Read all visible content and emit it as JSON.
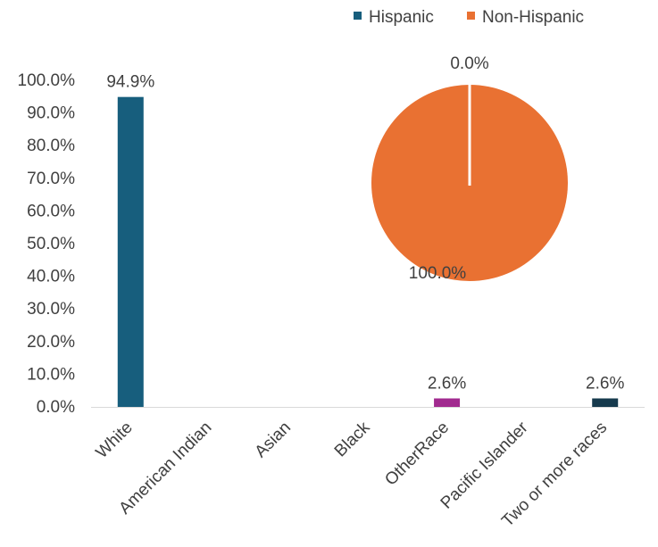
{
  "chart_data": [
    {
      "type": "bar",
      "categories": [
        "White",
        "American Indian",
        "Asian",
        "Black",
        "OtherRace",
        "Pacific Islander",
        "Two or more races"
      ],
      "values": [
        94.9,
        0,
        0,
        0,
        2.6,
        0,
        2.6
      ],
      "data_labels": [
        "94.9%",
        "",
        "",
        "",
        "2.6%",
        "",
        "2.6%"
      ],
      "bar_colors": [
        "#175e7d",
        "#175e7d",
        "#175e7d",
        "#175e7d",
        "#a12a8f",
        "#175e7d",
        "#163a4d"
      ],
      "ylim": [
        0,
        100
      ],
      "yticks": [
        "0.0%",
        "10.0%",
        "20.0%",
        "30.0%",
        "40.0%",
        "50.0%",
        "60.0%",
        "70.0%",
        "80.0%",
        "90.0%",
        "100.0%"
      ],
      "grid": false,
      "legend": "none"
    },
    {
      "type": "pie",
      "labels": [
        "Hispanic",
        "Non-Hispanic"
      ],
      "values": [
        0.0,
        100.0
      ],
      "data_labels": [
        "0.0%",
        "100.0%"
      ],
      "colors": [
        "#175e7d",
        "#e97132"
      ],
      "legend": "top"
    }
  ]
}
